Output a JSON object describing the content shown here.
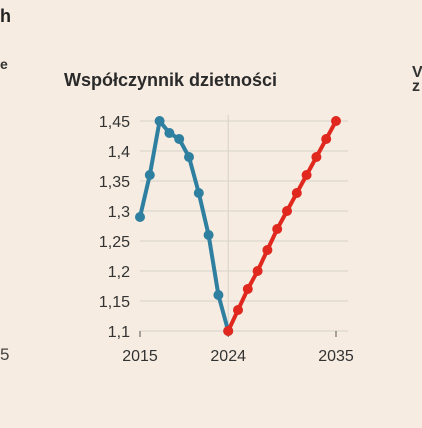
{
  "fragments": {
    "top_left": "h",
    "mid_left": "e",
    "bottom_left": "5",
    "right_top": "V",
    "right_second": "z"
  },
  "chart_data": {
    "type": "line",
    "title": "Współczynnik dzietności",
    "xlabel": "",
    "ylabel": "",
    "xlim": [
      2015,
      2035
    ],
    "ylim": [
      1.1,
      1.45
    ],
    "x_ticks": [
      2015,
      2024,
      2035
    ],
    "x_tick_labels": [
      "2015",
      "2024",
      "2035"
    ],
    "y_ticks": [
      1.1,
      1.15,
      1.2,
      1.25,
      1.3,
      1.35,
      1.4,
      1.45
    ],
    "y_tick_labels": [
      "1,1",
      "1,15",
      "1,2",
      "1,25",
      "1,3",
      "1,35",
      "1,4",
      "1,45"
    ],
    "grid": true,
    "vertical_reference": 2024,
    "series": [
      {
        "kind": "historical",
        "color": "#2f7fa0",
        "x": [
          2015,
          2016,
          2017,
          2018,
          2019,
          2020,
          2021,
          2022,
          2023,
          2024
        ],
        "y": [
          1.29,
          1.36,
          1.45,
          1.43,
          1.42,
          1.39,
          1.33,
          1.26,
          1.16,
          1.1
        ]
      },
      {
        "kind": "projection",
        "color": "#e0281f",
        "x": [
          2024,
          2025,
          2026,
          2027,
          2028,
          2029,
          2030,
          2031,
          2032,
          2033,
          2034,
          2035
        ],
        "y": [
          1.1,
          1.135,
          1.17,
          1.2,
          1.235,
          1.27,
          1.3,
          1.33,
          1.36,
          1.39,
          1.42,
          1.45
        ]
      }
    ]
  }
}
